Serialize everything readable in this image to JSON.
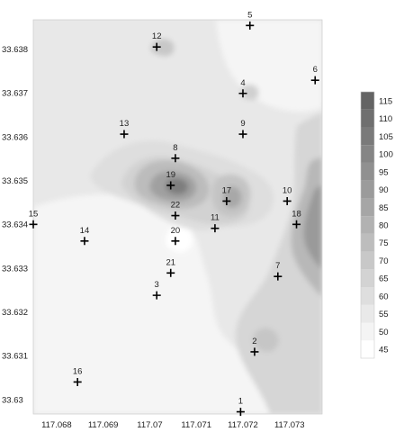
{
  "chart_data": {
    "type": "contour",
    "x_ticks": [
      "117.068",
      "117.069",
      "117.07",
      "117.071",
      "117.072",
      "117.073"
    ],
    "y_ticks": [
      "33.638",
      "33.637",
      "33.636",
      "33.635",
      "33.634",
      "33.633",
      "33.632",
      "33.631",
      "33.63"
    ],
    "xlim": [
      117.0675,
      117.0737
    ],
    "ylim": [
      33.6298,
      33.6388
    ],
    "points": [
      {
        "label": "1",
        "x": 117.07195,
        "y": 33.62985
      },
      {
        "label": "2",
        "x": 117.07225,
        "y": 33.63122
      },
      {
        "label": "3",
        "x": 117.07015,
        "y": 33.63251
      },
      {
        "label": "4",
        "x": 117.072,
        "y": 33.63712
      },
      {
        "label": "5",
        "x": 117.07215,
        "y": 33.63867
      },
      {
        "label": "6",
        "x": 117.07355,
        "y": 33.63742
      },
      {
        "label": "7",
        "x": 117.07275,
        "y": 33.63294
      },
      {
        "label": "8",
        "x": 117.07055,
        "y": 33.63564
      },
      {
        "label": "9",
        "x": 117.072,
        "y": 33.63619
      },
      {
        "label": "10",
        "x": 117.07295,
        "y": 33.63466
      },
      {
        "label": "11",
        "x": 117.0714,
        "y": 33.63404
      },
      {
        "label": "12",
        "x": 117.07015,
        "y": 33.63818
      },
      {
        "label": "13",
        "x": 117.06945,
        "y": 33.63619
      },
      {
        "label": "14",
        "x": 117.0686,
        "y": 33.63375
      },
      {
        "label": "15",
        "x": 117.0675,
        "y": 33.63413
      },
      {
        "label": "16",
        "x": 117.06845,
        "y": 33.63053
      },
      {
        "label": "17",
        "x": 117.07165,
        "y": 33.63466
      },
      {
        "label": "18",
        "x": 117.07315,
        "y": 33.63413
      },
      {
        "label": "19",
        "x": 117.07045,
        "y": 33.63502
      },
      {
        "label": "20",
        "x": 117.07055,
        "y": 33.63375
      },
      {
        "label": "21",
        "x": 117.07045,
        "y": 33.63302
      },
      {
        "label": "22",
        "x": 117.07055,
        "y": 33.63433
      }
    ],
    "colorbar": {
      "levels": [
        45,
        50,
        55,
        60,
        65,
        70,
        75,
        80,
        85,
        90,
        95,
        100,
        105,
        110,
        115
      ],
      "ticks": [
        "115",
        "110",
        "105",
        "100",
        "95",
        "90",
        "85",
        "80",
        "75",
        "70",
        "65",
        "60",
        "55",
        "50",
        "45"
      ]
    }
  }
}
